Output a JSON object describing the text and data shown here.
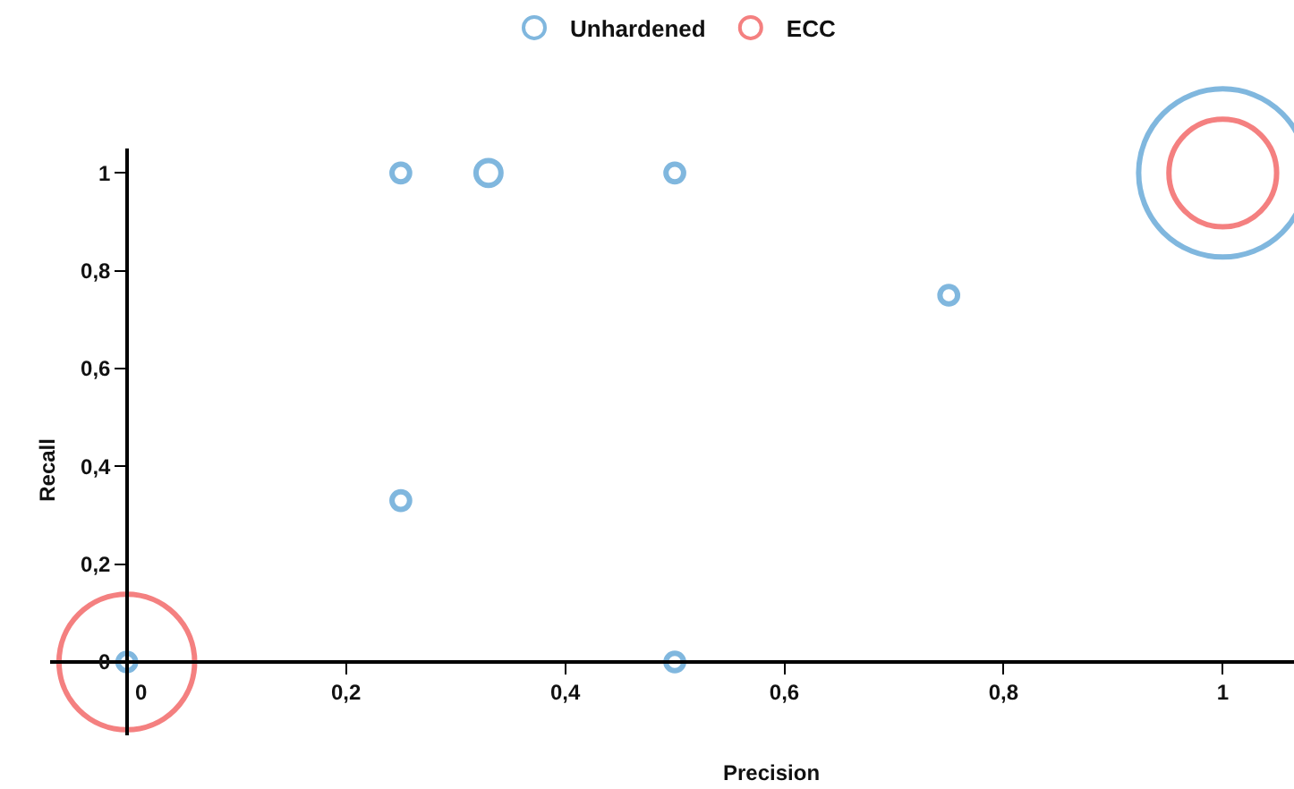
{
  "chart_data": {
    "type": "bubble",
    "xlabel": "Precision",
    "ylabel": "Recall",
    "xlim": [
      -0.07,
      1.065
    ],
    "ylim": [
      -0.15,
      1.05
    ],
    "xticks": [
      {
        "value": 0,
        "label": "0"
      },
      {
        "value": 0.2,
        "label": "0,2"
      },
      {
        "value": 0.4,
        "label": "0,4"
      },
      {
        "value": 0.6,
        "label": "0,6"
      },
      {
        "value": 0.8,
        "label": "0,8"
      },
      {
        "value": 1,
        "label": "1"
      }
    ],
    "yticks": [
      {
        "value": 0,
        "label": "0"
      },
      {
        "value": 0.2,
        "label": "0,2"
      },
      {
        "value": 0.4,
        "label": "0,4"
      },
      {
        "value": 0.6,
        "label": "0,6"
      },
      {
        "value": 0.8,
        "label": "0,8"
      },
      {
        "value": 1,
        "label": "1"
      }
    ],
    "grid": false,
    "legend": "top",
    "marker": "circle",
    "series": [
      {
        "name": "Unhardened",
        "color": "#4a98d0",
        "x": [
          0,
          0.25,
          0.25,
          0.33,
          0.5,
          0.5,
          0.75,
          1
        ],
        "values": [
          0,
          0.33,
          1,
          1,
          1,
          0,
          0.75,
          1
        ],
        "sizes": [
          0.011,
          0.011,
          0.011,
          0.022,
          0.011,
          0.011,
          0.011,
          1
        ]
      },
      {
        "name": "ECC",
        "color": "#f04a4a",
        "x": [
          0,
          1
        ],
        "values": [
          0,
          1
        ],
        "sizes": [
          0.65,
          0.41
        ]
      }
    ]
  }
}
